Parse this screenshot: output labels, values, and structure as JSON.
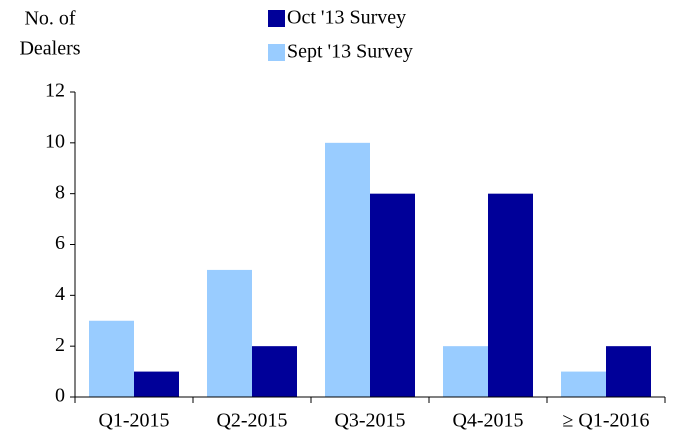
{
  "chart_data": {
    "type": "bar",
    "ylabel": [
      "No. of",
      "Dealers"
    ],
    "categories": [
      "Q1-2015",
      "Q2-2015",
      "Q3-2015",
      "Q4-2015",
      "≥ Q1-2016"
    ],
    "series": [
      {
        "name": "Sept '13 Survey",
        "color": "#99ccff",
        "values": [
          3,
          5,
          10,
          2,
          1
        ]
      },
      {
        "name": "Oct '13 Survey",
        "color": "#000099",
        "values": [
          1,
          2,
          8,
          8,
          2
        ]
      }
    ],
    "ylim": [
      0,
      12
    ],
    "yticks": [
      0,
      2,
      4,
      6,
      8,
      10,
      12
    ],
    "grid": false
  }
}
